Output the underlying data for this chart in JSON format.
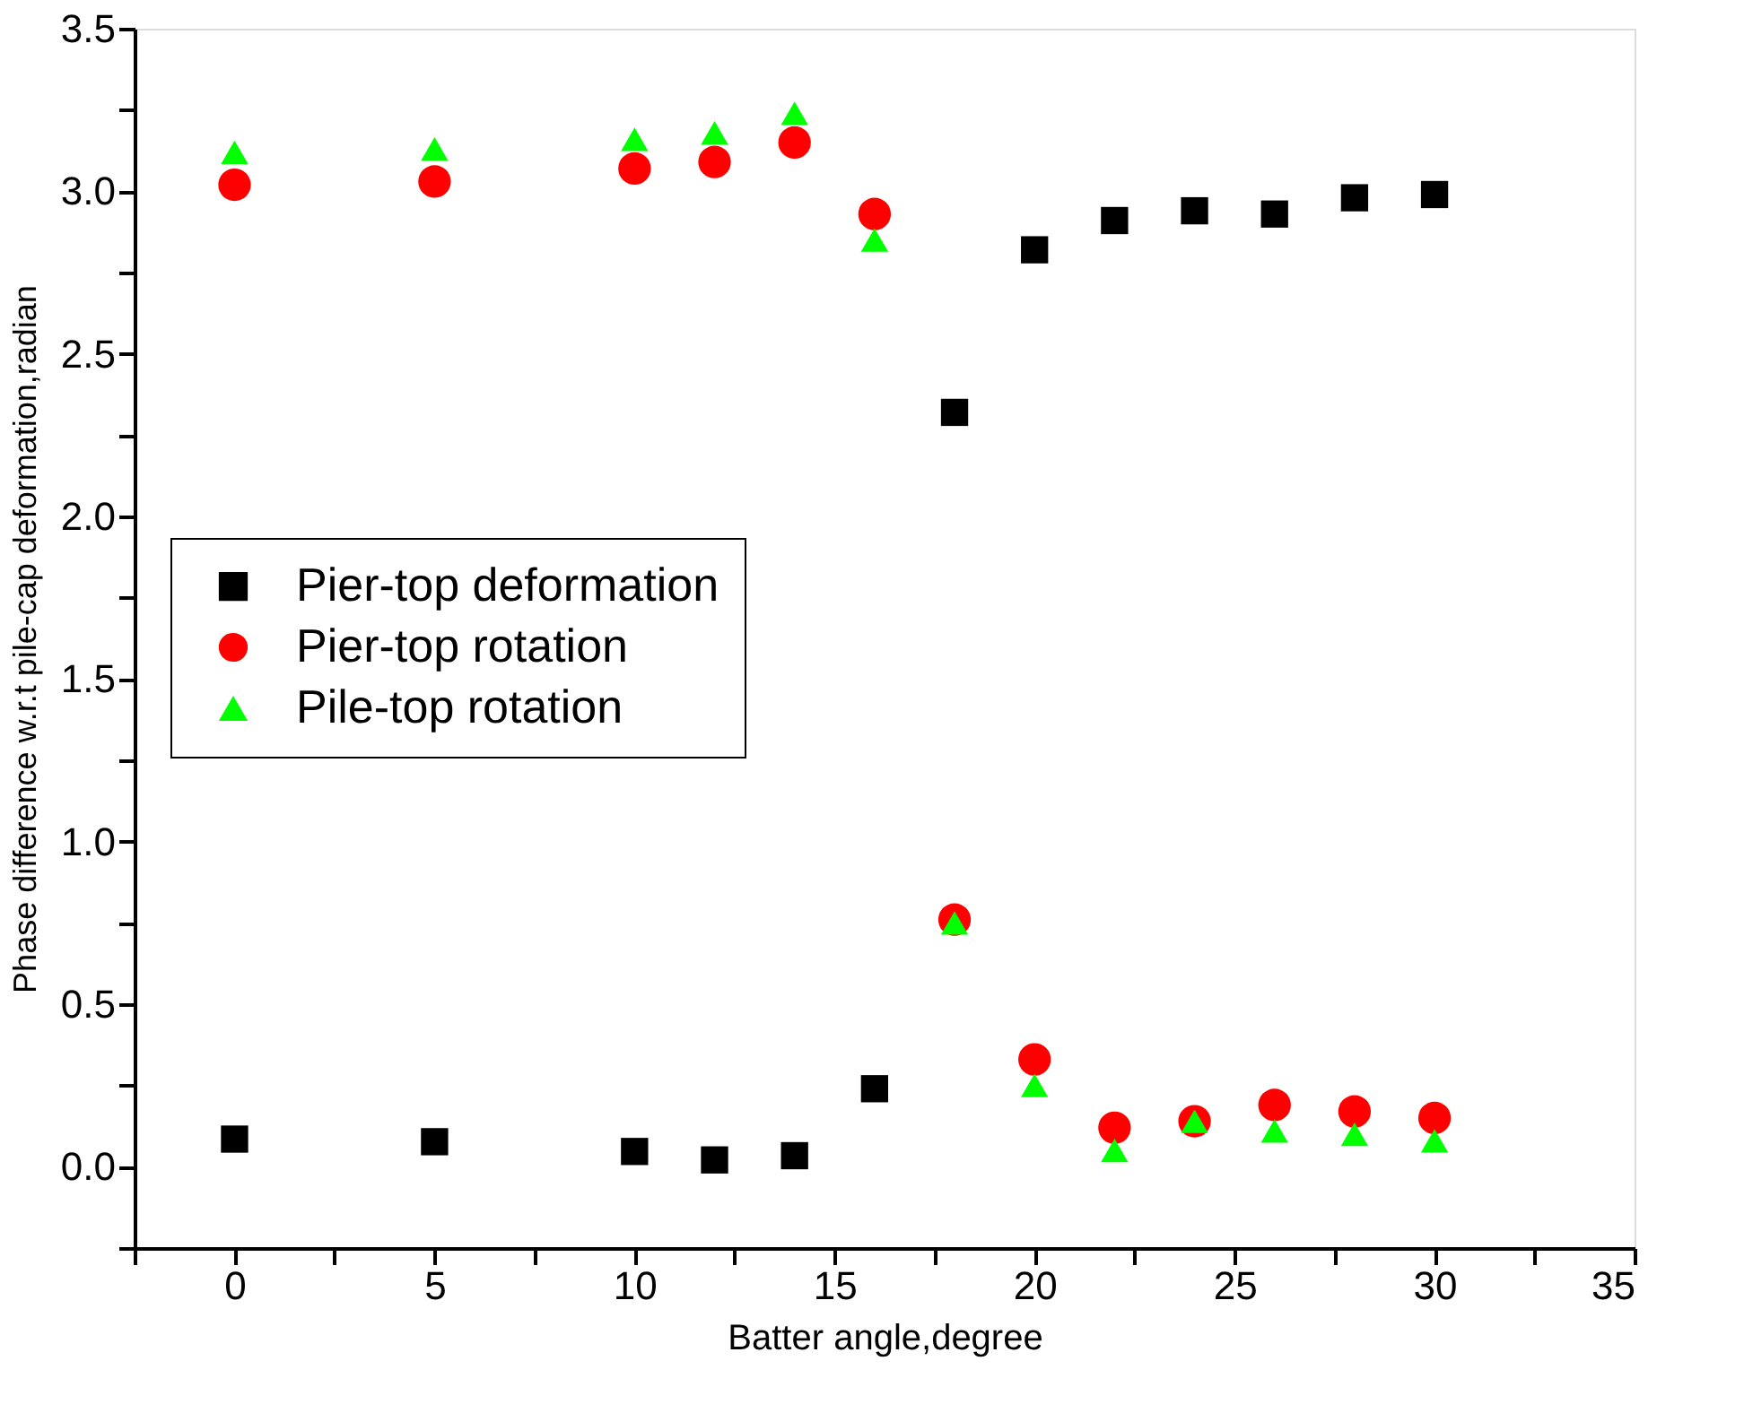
{
  "chart_data": {
    "type": "scatter",
    "xlabel": "Batter angle,degree",
    "ylabel": "Phase difference w.r.t pile-cap deformation,radian",
    "x": [
      0,
      5,
      10,
      12,
      14,
      16,
      18,
      20,
      22,
      24,
      26,
      28,
      30
    ],
    "series": [
      {
        "name": "Pier-top deformation",
        "color": "#000000",
        "marker": "square",
        "values": [
          0.085,
          0.077,
          0.047,
          0.021,
          0.034,
          0.24,
          2.32,
          2.82,
          2.91,
          2.94,
          2.93,
          2.98,
          2.99
        ]
      },
      {
        "name": "Pier-top rotation",
        "color": "#ff0000",
        "marker": "circle",
        "values": [
          3.02,
          3.03,
          3.07,
          3.09,
          3.15,
          2.93,
          0.76,
          0.33,
          0.12,
          0.14,
          0.19,
          0.17,
          0.15
        ]
      },
      {
        "name": "Pile-top rotation",
        "color": "#00ff00",
        "marker": "triangle",
        "values": [
          3.12,
          3.13,
          3.16,
          3.18,
          3.24,
          2.85,
          0.75,
          0.25,
          0.05,
          0.14,
          0.11,
          0.1,
          0.08
        ]
      }
    ],
    "xlim": [
      -2.5,
      35
    ],
    "xticks": [
      {
        "value": -2.5,
        "label": null
      },
      0,
      {
        "value": 2.5,
        "label": null
      },
      5,
      {
        "value": 7.5,
        "label": null
      },
      10,
      {
        "value": 12.5,
        "label": null
      },
      15,
      {
        "value": 17.5,
        "label": null
      },
      20,
      {
        "value": 22.5,
        "label": null
      },
      25,
      {
        "value": 27.5,
        "label": null
      },
      30,
      {
        "value": 32.5,
        "label": null
      },
      35
    ],
    "ylim": [
      -0.25,
      3.5
    ],
    "yticks": [
      {
        "value": -0.25,
        "label": null
      },
      {
        "value": 0,
        "label": "0.0"
      },
      {
        "value": 0.25,
        "label": null
      },
      0.5,
      {
        "value": 0.75,
        "label": null
      },
      {
        "value": 1,
        "label": "1.0"
      },
      {
        "value": 1.25,
        "label": null
      },
      1.5,
      {
        "value": 1.75,
        "label": null
      },
      {
        "value": 2,
        "label": "2.0"
      },
      {
        "value": 2.25,
        "label": null
      },
      2.5,
      {
        "value": 2.75,
        "label": null
      },
      {
        "value": 3,
        "label": "3.0"
      },
      {
        "value": 3.25,
        "label": null
      },
      3.5
    ],
    "grid": false,
    "legend": "left"
  }
}
